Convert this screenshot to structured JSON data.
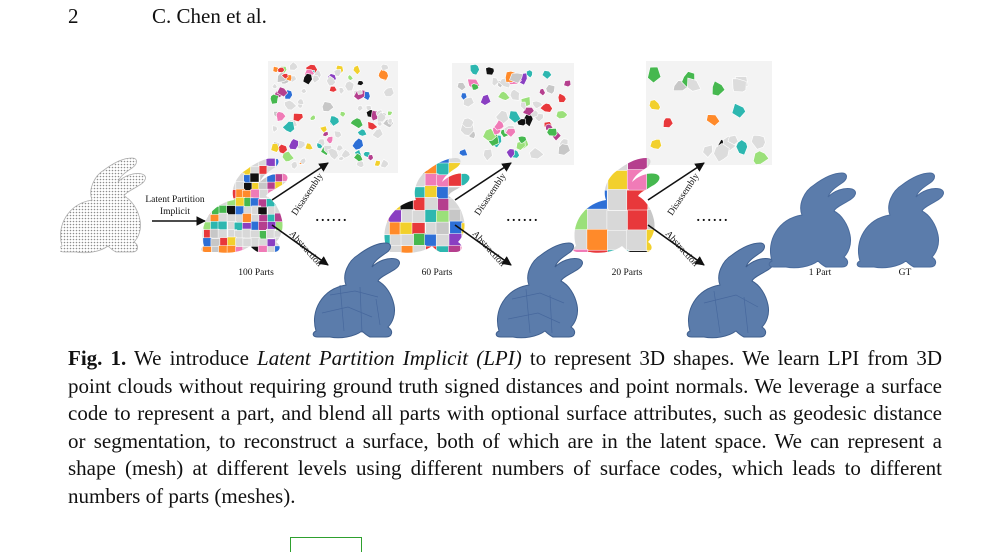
{
  "header": {
    "page_number": "2",
    "authors": "C. Chen et al."
  },
  "figure": {
    "input_arrow_label_line1": "Latent Partition",
    "input_arrow_label_line2": "Implicit",
    "branch_up_label": "Disassembly",
    "branch_down_label": "Abstraction",
    "ellipsis": "......",
    "stage_labels": [
      "100 Parts",
      "60 Parts",
      "20 Parts",
      "1 Part",
      "GT"
    ]
  },
  "caption": {
    "fig_label": "Fig. 1.",
    "text_before_italic": " We introduce ",
    "italic_text": "Latent Partition Implicit (LPI)",
    "text_after_italic": " to represent 3D shapes. We learn LPI from 3D point clouds without requiring ground truth signed distances and point normals. We leverage a surface code to represent a part, and blend all parts with optional surface attributes, such as geodesic distance or segmentation, to reconstruct a surface, both of which are in the latent space. We can represent a shape (mesh) at different levels using different numbers of surface codes, which leads to different numbers of parts (meshes)."
  },
  "colors": {
    "mesh_blue": "#5b7cab",
    "point_cloud_gray": "#9a9a9a",
    "part_palette": [
      "#e8383b",
      "#2d6fd6",
      "#f2d02c",
      "#46b84f",
      "#8a3fc2",
      "#f07bb7",
      "#2db7b0",
      "#ff8a2a",
      "#111111",
      "#c7c7c7",
      "#9be07a",
      "#b53f8e"
    ]
  }
}
